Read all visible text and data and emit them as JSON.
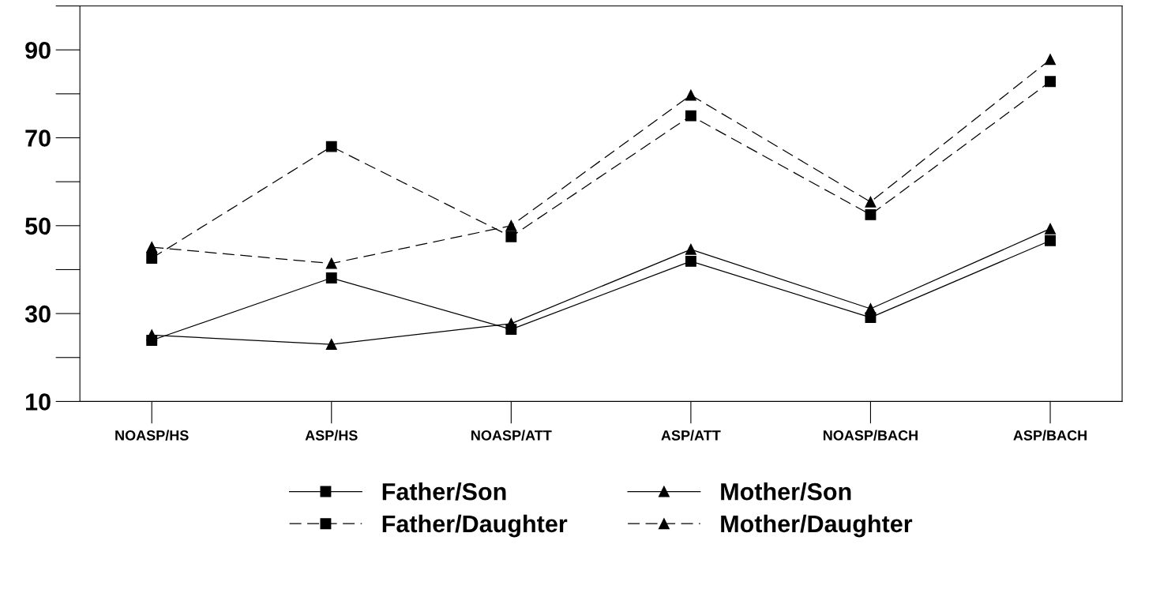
{
  "chart_data": {
    "type": "line",
    "categories": [
      "NOASP/HS",
      "ASP/HS",
      "NOASP/ATT",
      "ASP/ATT",
      "NOASP/BACH",
      "ASP/BACH"
    ],
    "series": [
      {
        "name": "Father/Son",
        "color": "#000000",
        "marker": "square",
        "line_style": "solid",
        "values": [
          23.9,
          38.1,
          26.4,
          41.9,
          29.1,
          46.6
        ]
      },
      {
        "name": "Mother/Son",
        "color": "#000000",
        "marker": "triangle",
        "line_style": "solid",
        "values": [
          25.1,
          23.0,
          27.7,
          44.6,
          31.1,
          49.3
        ]
      },
      {
        "name": "Father/Daughter",
        "color": "#000000",
        "marker": "square",
        "line_style": "dashed",
        "values": [
          42.6,
          68.0,
          47.5,
          75.0,
          52.5,
          82.8
        ]
      },
      {
        "name": "Mother/Daughter",
        "color": "#000000",
        "marker": "triangle",
        "line_style": "dashed",
        "values": [
          45.1,
          41.4,
          50.0,
          79.7,
          55.4,
          87.8
        ]
      }
    ],
    "ylim": [
      10,
      100
    ],
    "yticks": [
      10,
      30,
      50,
      70,
      90
    ],
    "grid": false,
    "legend": "bottom"
  }
}
